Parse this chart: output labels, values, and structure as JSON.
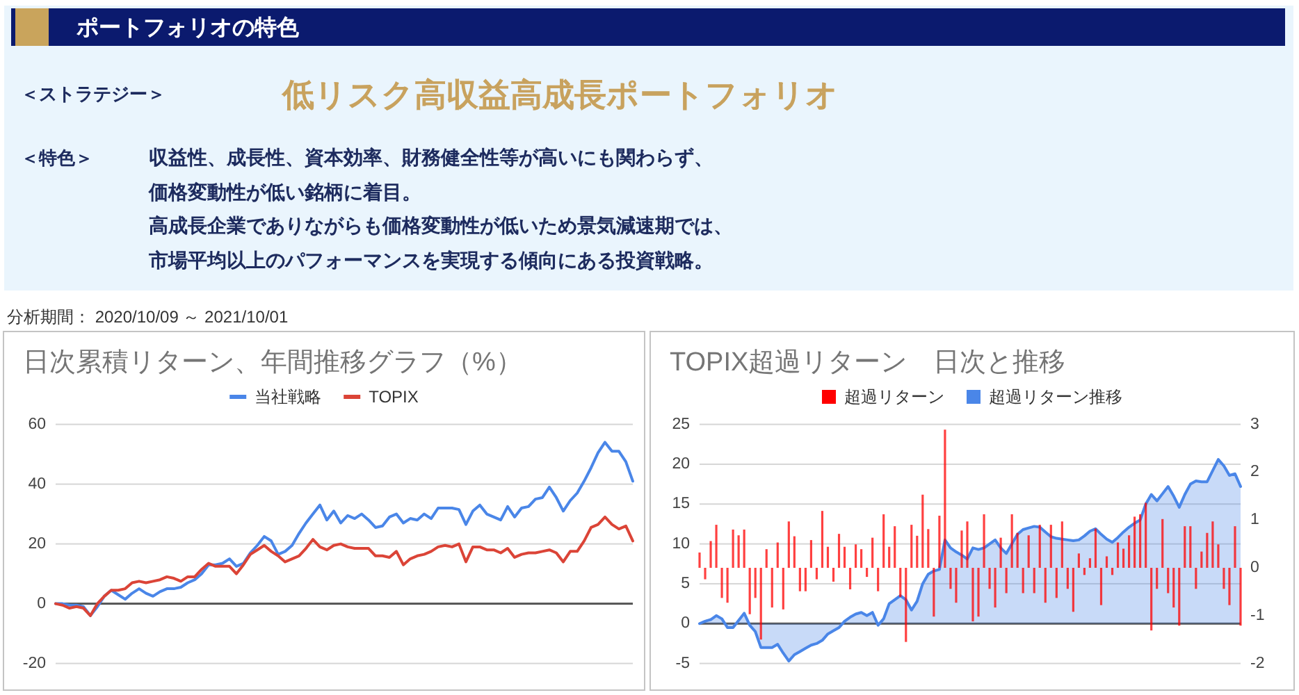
{
  "chart_data": [
    {
      "type": "other",
      "title": "ポートフォリオの特色",
      "annotations": [
        "＜ストラテジー＞",
        "低リスク高収益高成長ポートフォリオ",
        "＜特色＞",
        "収益性、成長性、資本効率、財務健全性等が高いにも関わらず、",
        "価格変動性が低い銘柄に着目。",
        "高成長企業でありながらも価格変動性が低いため景気減速期では、",
        "市場平均以上のパフォーマンスを実現する傾向にある投資戦略。",
        "分析期間： 2020/10/09 ～ 2021/10/01"
      ]
    },
    {
      "type": "line",
      "title": "日次累積リターン、年間推移グラフ（%）",
      "categories": [
        null,
        null,
        null,
        null,
        null,
        null,
        null,
        null,
        null,
        null,
        null,
        null,
        null,
        null,
        null,
        null,
        null,
        null,
        null,
        null,
        null,
        null,
        null,
        null,
        null,
        null,
        null,
        null,
        null,
        null,
        null,
        null,
        null,
        null,
        null,
        null,
        null,
        null,
        null,
        null,
        null,
        null,
        null,
        null,
        null,
        null,
        null,
        null,
        null,
        null,
        null,
        null,
        null,
        null,
        null,
        null,
        null,
        null,
        null,
        null,
        null,
        null,
        null,
        null,
        null,
        null,
        null,
        null,
        null,
        null,
        null,
        null,
        null,
        null,
        null,
        null,
        null,
        null,
        null,
        null,
        null,
        null,
        null,
        null
      ],
      "series": [
        {
          "name": "当社戦略",
          "color": "#4a86e8",
          "values": [
            0,
            0,
            -0.5,
            -0.5,
            -1,
            -4,
            -1,
            2.5,
            4.5,
            3,
            1.5,
            3.5,
            5,
            3.5,
            2.5,
            4,
            5,
            5,
            5.5,
            7,
            8,
            10,
            13,
            13,
            13.5,
            15,
            12.5,
            13.5,
            17,
            19.5,
            22.5,
            21,
            16.5,
            17.5,
            19.5,
            23.5,
            27,
            30,
            33,
            28,
            31,
            27,
            29.5,
            28.5,
            30,
            28,
            25.5,
            26,
            29,
            30,
            27,
            28.5,
            28,
            30,
            28.5,
            32,
            32,
            32,
            31.5,
            26.5,
            31,
            33,
            30,
            29,
            28,
            32.5,
            29,
            32,
            32.5,
            35,
            35.5,
            39,
            35.5,
            31,
            34.5,
            37,
            41,
            45.5,
            50.5,
            54,
            51,
            51,
            47.5,
            41
          ]
        },
        {
          "name": "TOPIX",
          "color": "#db4437",
          "values": [
            0,
            -0.5,
            -1.5,
            -1,
            -1.5,
            -4,
            0,
            2.5,
            4.5,
            4.5,
            5,
            7,
            7.5,
            7,
            7.5,
            8,
            9,
            8.5,
            7.5,
            9,
            9,
            11.5,
            13.5,
            12.5,
            12.5,
            12.5,
            10,
            13,
            16.5,
            18,
            19.5,
            17.5,
            16,
            14,
            15,
            16,
            18.5,
            21.5,
            19,
            18,
            19.5,
            20,
            19,
            18.5,
            18.5,
            18.5,
            16,
            16,
            15.5,
            17.5,
            13,
            15,
            16,
            16.5,
            17.5,
            19,
            19.5,
            19,
            20,
            14,
            19,
            19,
            18,
            18,
            17,
            18.5,
            15.5,
            16.5,
            17,
            17,
            17.5,
            18,
            17,
            14,
            17.5,
            17.5,
            21,
            25.5,
            26.5,
            29,
            26.5,
            25,
            26,
            21
          ]
        }
      ],
      "ylim": [
        -20,
        60
      ],
      "yticks": [
        -20,
        0,
        20,
        40,
        60
      ],
      "grid": "y",
      "legend": "top"
    },
    {
      "type": "bar",
      "title": "TOPIX超過リターン　日次と推移",
      "categories": [
        null,
        null,
        null,
        null,
        null,
        null,
        null,
        null,
        null,
        null,
        null,
        null,
        null,
        null,
        null,
        null,
        null,
        null,
        null,
        null,
        null,
        null,
        null,
        null,
        null,
        null,
        null,
        null,
        null,
        null,
        null,
        null,
        null,
        null,
        null,
        null,
        null,
        null,
        null,
        null,
        null,
        null,
        null,
        null,
        null,
        null,
        null,
        null,
        null,
        null,
        null,
        null,
        null,
        null,
        null,
        null,
        null,
        null,
        null,
        null,
        null,
        null,
        null,
        null,
        null,
        null,
        null,
        null,
        null,
        null,
        null,
        null,
        null,
        null,
        null,
        null,
        null,
        null,
        null,
        null,
        null,
        null,
        null,
        null,
        null,
        null,
        null,
        null,
        null,
        null,
        null,
        null,
        null,
        null,
        null,
        null,
        null,
        null
      ],
      "series": [
        {
          "name": "超過リターン",
          "type": "bar",
          "axis": "y2",
          "color": "#ff0000",
          "values": [
            0.32,
            -0.24,
            0.56,
            0.9,
            -0.63,
            -0.73,
            0.8,
            0.68,
            0.8,
            -0.97,
            -0.63,
            -1.5,
            0.39,
            -0.83,
            0.53,
            -0.87,
            0.97,
            0.66,
            -0.49,
            -0.49,
            0.58,
            -0.24,
            1.19,
            0.44,
            -0.29,
            0.71,
            0.44,
            -0.45,
            0.49,
            0.39,
            -0.19,
            0.63,
            -0.49,
            1.12,
            0.44,
            0.87,
            -0.61,
            -1.55,
            0.9,
            0.67,
            1.53,
            0.81,
            -1.02,
            1.09,
            2.89,
            -0.44,
            -0.73,
            0.78,
            0.97,
            -1.12,
            -1.02,
            1.12,
            -0.44,
            -0.83,
            0.63,
            -0.53,
            1.12,
            0.73,
            -0.53,
            0.68,
            -0.53,
            0.9,
            -0.73,
            0.9,
            -0.63,
            0.97,
            -0.44,
            -0.92,
            0.3,
            -0.15,
            0.2,
            0.82,
            -0.78,
            0.24,
            -0.15,
            0.53,
            0.4,
            0.68,
            1.07,
            1.12,
            1.36,
            -1.31,
            -0.44,
            1.02,
            -0.53,
            -0.83,
            -1.21,
            0.87,
            0.87,
            -0.44,
            0.34,
            0.73,
            0.97,
            0.49,
            -0.44,
            -0.78,
            0.87,
            -1.21
          ]
        },
        {
          "name": "超過リターン推移",
          "type": "area",
          "color": "#4a86e8",
          "values": [
            0,
            0.3,
            0.5,
            1,
            0.6,
            -0.5,
            -0.5,
            0.4,
            1.3,
            -0.2,
            -1,
            -3,
            -3,
            -3,
            -2.6,
            -3.7,
            -4.7,
            -3.9,
            -3.5,
            -3.1,
            -2.7,
            -2.5,
            -2.1,
            -1.3,
            -0.9,
            -0.5,
            0.3,
            0.8,
            1.2,
            1.4,
            1,
            1.4,
            -0.2,
            0.6,
            2.5,
            3,
            3.5,
            3,
            1.7,
            2.8,
            5,
            6.2,
            6.6,
            6.8,
            10.5,
            9.5,
            9,
            8.6,
            8.1,
            9.5,
            9.3,
            9.5,
            10,
            10.5,
            9.5,
            8.8,
            10,
            11.2,
            11.8,
            12,
            12.2,
            12.1,
            11.5,
            10.9,
            10.7,
            10.6,
            10.5,
            10.4,
            10.5,
            11,
            11.6,
            11.9,
            11.2,
            10.6,
            10.2,
            10.8,
            11.5,
            12.1,
            12.6,
            13,
            15,
            16.2,
            15.4,
            16.3,
            17.2,
            16,
            14.6,
            16.2,
            17.5,
            17.9,
            17.8,
            17.8,
            19.2,
            20.6,
            19.8,
            18.6,
            18.8,
            17.2
          ]
        }
      ],
      "ylim": [
        -5,
        25
      ],
      "yticks": [
        -5,
        0,
        5,
        10,
        15,
        20,
        25
      ],
      "y2lim": [
        -2,
        3
      ],
      "y2ticks": [
        -2,
        -1,
        0,
        1,
        2,
        3
      ],
      "grid": "y",
      "legend": "top"
    }
  ]
}
